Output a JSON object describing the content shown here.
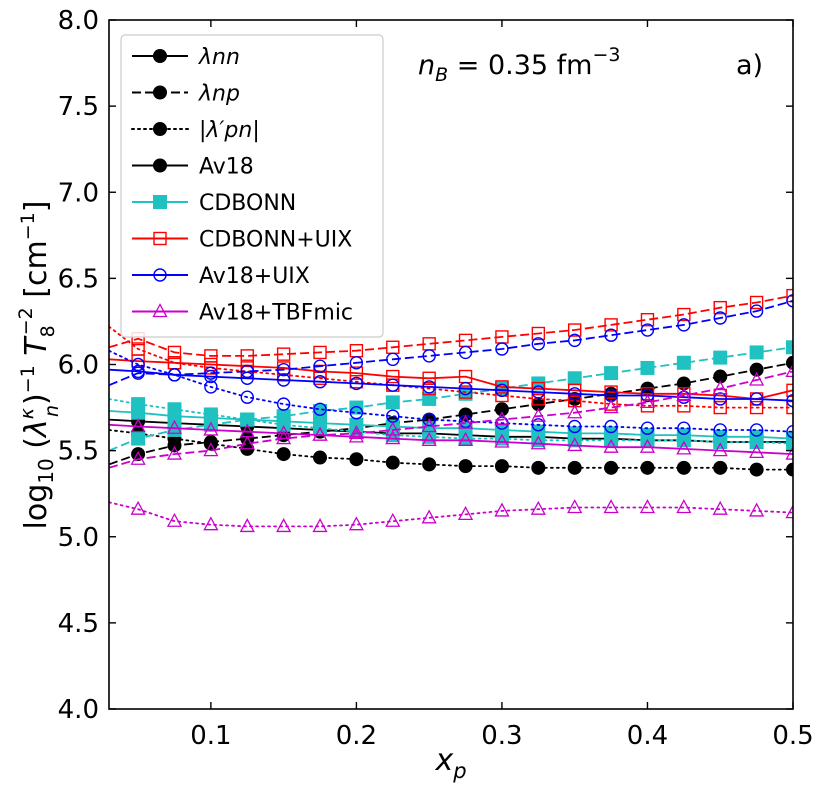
{
  "chart_data": {
    "type": "line",
    "title": "",
    "annotation": "n_B = 0.35 fm^-3",
    "panel_label": "a)",
    "xlabel": "x_p",
    "ylabel": "log10 (λ_n^κ)^-1 T_8^-2 [cm^-1]",
    "xlim": [
      0.03,
      0.5
    ],
    "ylim": [
      4.0,
      8.0
    ],
    "xticks": [
      "0.1",
      "0.2",
      "0.3",
      "0.4",
      "0.5"
    ],
    "xtick_values": [
      0.1,
      0.2,
      0.3,
      0.4,
      0.5
    ],
    "yticks": [
      "4.0",
      "4.5",
      "5.0",
      "5.5",
      "6.0",
      "6.5",
      "7.0",
      "7.5",
      "8.0"
    ],
    "ytick_values": [
      4.0,
      4.5,
      5.0,
      5.5,
      6.0,
      6.5,
      7.0,
      7.5,
      8.0
    ],
    "legend_location": "upper-left",
    "legend": [
      {
        "label": "λnn",
        "style": "solid",
        "color": "#000000",
        "marker": "filled-circle"
      },
      {
        "label": "λnp",
        "style": "dashed",
        "color": "#000000",
        "marker": "filled-circle"
      },
      {
        "label": "|λ′pn|",
        "style": "dotted",
        "color": "#000000",
        "marker": "filled-circle"
      },
      {
        "label": "Av18",
        "style": "solid",
        "color": "#000000",
        "marker": "filled-circle"
      },
      {
        "label": "CDBONN",
        "style": "solid",
        "color": "#17becf",
        "marker": "filled-square"
      },
      {
        "label": "CDBONN+UIX",
        "style": "solid",
        "color": "#ff0000",
        "marker": "open-square"
      },
      {
        "label": "Av18+UIX",
        "style": "solid",
        "color": "#0000ff",
        "marker": "open-circle"
      },
      {
        "label": "Av18+TBFmic",
        "style": "solid",
        "color": "#cc00cc",
        "marker": "open-triangle"
      }
    ],
    "colors": {
      "Av18": "#000000",
      "CDBONN": "#1fc1c1",
      "CDBONN+UIX": "#ff0000",
      "Av18+UIX": "#0000ff",
      "Av18+TBFmic": "#cc00cc"
    },
    "x": [
      0.03,
      0.05,
      0.075,
      0.1,
      0.125,
      0.15,
      0.175,
      0.2,
      0.225,
      0.25,
      0.275,
      0.3,
      0.325,
      0.35,
      0.375,
      0.4,
      0.425,
      0.45,
      0.475,
      0.5
    ],
    "markers_x": [
      0.05,
      0.075,
      0.1,
      0.125,
      0.15,
      0.175,
      0.2,
      0.225,
      0.25,
      0.275,
      0.3,
      0.325,
      0.35,
      0.375,
      0.4,
      0.425,
      0.45,
      0.475,
      0.5
    ],
    "series": [
      {
        "name": "Av18 λnn",
        "model": "Av18",
        "style": "solid",
        "marker": "filled-circle",
        "values": [
          5.68,
          5.67,
          5.66,
          5.65,
          5.64,
          5.63,
          5.62,
          5.61,
          5.6,
          5.6,
          5.59,
          5.58,
          5.58,
          5.57,
          5.57,
          5.56,
          5.56,
          5.55,
          5.55,
          5.55
        ]
      },
      {
        "name": "Av18 λnp",
        "model": "Av18",
        "style": "dashed",
        "marker": "filled-circle",
        "values": [
          5.42,
          5.48,
          5.53,
          5.55,
          5.57,
          5.59,
          5.61,
          5.63,
          5.66,
          5.68,
          5.71,
          5.74,
          5.77,
          5.8,
          5.83,
          5.86,
          5.89,
          5.93,
          5.97,
          6.01
        ]
      },
      {
        "name": "Av18 |λ'pn|",
        "model": "Av18",
        "style": "dotted",
        "marker": "filled-circle",
        "values": [
          5.62,
          5.6,
          5.57,
          5.54,
          5.51,
          5.48,
          5.46,
          5.45,
          5.43,
          5.42,
          5.41,
          5.41,
          5.4,
          5.4,
          5.4,
          5.4,
          5.4,
          5.4,
          5.39,
          5.39
        ]
      },
      {
        "name": "CDBONN λnn",
        "model": "CDBONN",
        "style": "solid",
        "marker": "filled-square",
        "values": [
          5.73,
          5.72,
          5.7,
          5.69,
          5.68,
          5.67,
          5.66,
          5.65,
          5.64,
          5.63,
          5.63,
          5.62,
          5.61,
          5.6,
          5.6,
          5.59,
          5.59,
          5.58,
          5.58,
          5.57
        ]
      },
      {
        "name": "CDBONN λnp",
        "model": "CDBONN",
        "style": "dashed",
        "marker": "filled-square",
        "values": [
          5.5,
          5.57,
          5.62,
          5.65,
          5.68,
          5.7,
          5.73,
          5.75,
          5.78,
          5.8,
          5.83,
          5.86,
          5.89,
          5.92,
          5.95,
          5.98,
          6.01,
          6.04,
          6.07,
          6.1
        ]
      },
      {
        "name": "CDBONN |λ'pn|",
        "model": "CDBONN",
        "style": "dotted",
        "marker": "filled-square",
        "values": [
          5.8,
          5.77,
          5.74,
          5.71,
          5.68,
          5.65,
          5.63,
          5.61,
          5.59,
          5.58,
          5.57,
          5.57,
          5.56,
          5.56,
          5.56,
          5.56,
          5.56,
          5.55,
          5.55,
          5.54
        ]
      },
      {
        "name": "CDBONN+UIX λnn",
        "model": "CDBONN+UIX",
        "style": "solid",
        "marker": "open-square",
        "values": [
          6.03,
          6.02,
          6.01,
          6.0,
          5.99,
          5.98,
          5.96,
          5.95,
          5.93,
          5.92,
          5.93,
          5.87,
          5.86,
          5.85,
          5.84,
          5.83,
          5.83,
          5.82,
          5.8,
          5.85
        ]
      },
      {
        "name": "CDBONN+UIX λnp",
        "model": "CDBONN+UIX",
        "style": "dashed",
        "marker": "open-square",
        "values": [
          6.1,
          6.15,
          6.07,
          6.05,
          6.05,
          6.06,
          6.07,
          6.08,
          6.1,
          6.12,
          6.14,
          6.16,
          6.18,
          6.2,
          6.23,
          6.26,
          6.29,
          6.33,
          6.36,
          6.4
        ]
      },
      {
        "name": "CDBONN+UIX |λ'pn|",
        "model": "CDBONN+UIX",
        "style": "dotted",
        "marker": "open-square",
        "values": [
          6.22,
          6.09,
          6.01,
          5.98,
          5.96,
          5.94,
          5.92,
          5.9,
          5.88,
          5.86,
          5.84,
          5.82,
          5.8,
          5.79,
          5.77,
          5.76,
          5.76,
          5.75,
          5.75,
          5.75
        ]
      },
      {
        "name": "Av18+UIX λnn",
        "model": "Av18+UIX",
        "style": "solid",
        "marker": "open-circle",
        "values": [
          5.97,
          5.96,
          5.94,
          5.93,
          5.92,
          5.91,
          5.9,
          5.89,
          5.88,
          5.87,
          5.86,
          5.85,
          5.84,
          5.83,
          5.82,
          5.82,
          5.81,
          5.8,
          5.8,
          5.79
        ]
      },
      {
        "name": "Av18+UIX λnp",
        "model": "Av18+UIX",
        "style": "dashed",
        "marker": "open-circle",
        "values": [
          5.88,
          5.95,
          5.94,
          5.95,
          5.96,
          5.97,
          5.99,
          6.01,
          6.03,
          6.05,
          6.07,
          6.09,
          6.12,
          6.14,
          6.17,
          6.2,
          6.23,
          6.27,
          6.31,
          6.37
        ]
      },
      {
        "name": "Av18+UIX |λ'pn|",
        "model": "Av18+UIX",
        "style": "dotted",
        "marker": "open-circle",
        "values": [
          6.08,
          6.0,
          5.94,
          5.87,
          5.81,
          5.77,
          5.74,
          5.72,
          5.7,
          5.68,
          5.67,
          5.66,
          5.65,
          5.64,
          5.64,
          5.63,
          5.63,
          5.62,
          5.62,
          5.61
        ]
      },
      {
        "name": "Av18+TBFmic λnn",
        "model": "Av18+TBFmic",
        "style": "solid",
        "marker": "open-triangle",
        "values": [
          5.65,
          5.64,
          5.63,
          5.62,
          5.61,
          5.6,
          5.59,
          5.58,
          5.57,
          5.56,
          5.56,
          5.55,
          5.54,
          5.53,
          5.52,
          5.52,
          5.51,
          5.5,
          5.49,
          5.48
        ]
      },
      {
        "name": "Av18+TBFmic λnp",
        "model": "Av18+TBFmic",
        "style": "dashed",
        "marker": "open-triangle",
        "values": [
          5.4,
          5.45,
          5.48,
          5.5,
          5.54,
          5.57,
          5.59,
          5.6,
          5.62,
          5.64,
          5.66,
          5.68,
          5.7,
          5.72,
          5.75,
          5.78,
          5.82,
          5.86,
          5.91,
          5.96
        ]
      },
      {
        "name": "Av18+TBFmic |λ'pn|",
        "model": "Av18+TBFmic",
        "style": "dotted",
        "marker": "open-triangle",
        "values": [
          5.2,
          5.16,
          5.09,
          5.07,
          5.06,
          5.06,
          5.06,
          5.07,
          5.09,
          5.11,
          5.13,
          5.15,
          5.16,
          5.17,
          5.17,
          5.17,
          5.17,
          5.16,
          5.15,
          5.14
        ]
      }
    ]
  }
}
